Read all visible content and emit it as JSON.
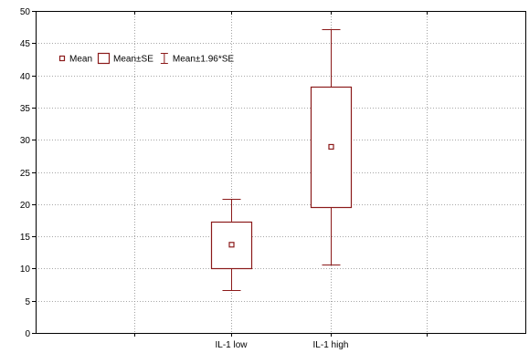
{
  "chart_data": {
    "type": "box",
    "title": "",
    "xlabel": "",
    "ylabel": "",
    "categories": [
      "IL-1 low",
      "IL-1 high"
    ],
    "ylim": [
      0,
      50
    ],
    "yticks": [
      0,
      5,
      10,
      15,
      20,
      25,
      30,
      35,
      40,
      45,
      50
    ],
    "grid": true,
    "grid_style": "dotted",
    "legend_position": "top-left",
    "legend": [
      {
        "marker": "square-point",
        "label": "Mean"
      },
      {
        "marker": "box",
        "label": "Mean±SE"
      },
      {
        "marker": "whisker",
        "label": "Mean±1.96*SE"
      }
    ],
    "series": [
      {
        "category": "IL-1 low",
        "mean": 13.7,
        "se_low": 10.1,
        "se_high": 17.3,
        "ci_low": 6.6,
        "ci_high": 20.8
      },
      {
        "category": "IL-1 high",
        "mean": 28.9,
        "se_low": 19.5,
        "se_high": 38.2,
        "ci_low": 10.6,
        "ci_high": 47.2
      }
    ],
    "color": "#8b1a1a"
  }
}
